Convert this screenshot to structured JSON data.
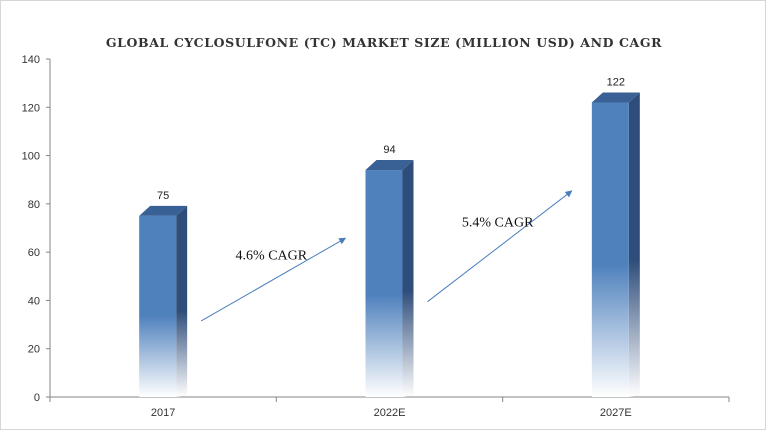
{
  "chart_data": {
    "type": "bar",
    "title": "GLOBAL CYCLOSULFONE  (TC) MARKET  SIZE (MILLION  USD) AND CAGR",
    "xlabel": "",
    "ylabel": "",
    "categories": [
      "2017",
      "2022E",
      "2027E"
    ],
    "values": [
      75,
      94,
      122
    ],
    "ylim": [
      0,
      140
    ],
    "yticks": [
      0,
      20,
      40,
      60,
      80,
      100,
      120,
      140
    ],
    "grid": false,
    "legend": "none",
    "bar_color": "#4f81bd",
    "bar_side_color": "#2f4d7a",
    "bar_top_color": "#3a6195",
    "annotations": [
      {
        "text": "4.6% CAGR",
        "from": "2017",
        "to": "2022E"
      },
      {
        "text": "5.4% CAGR",
        "from": "2022E",
        "to": "2027E"
      }
    ],
    "arrow_color": "#4a7ebb"
  }
}
